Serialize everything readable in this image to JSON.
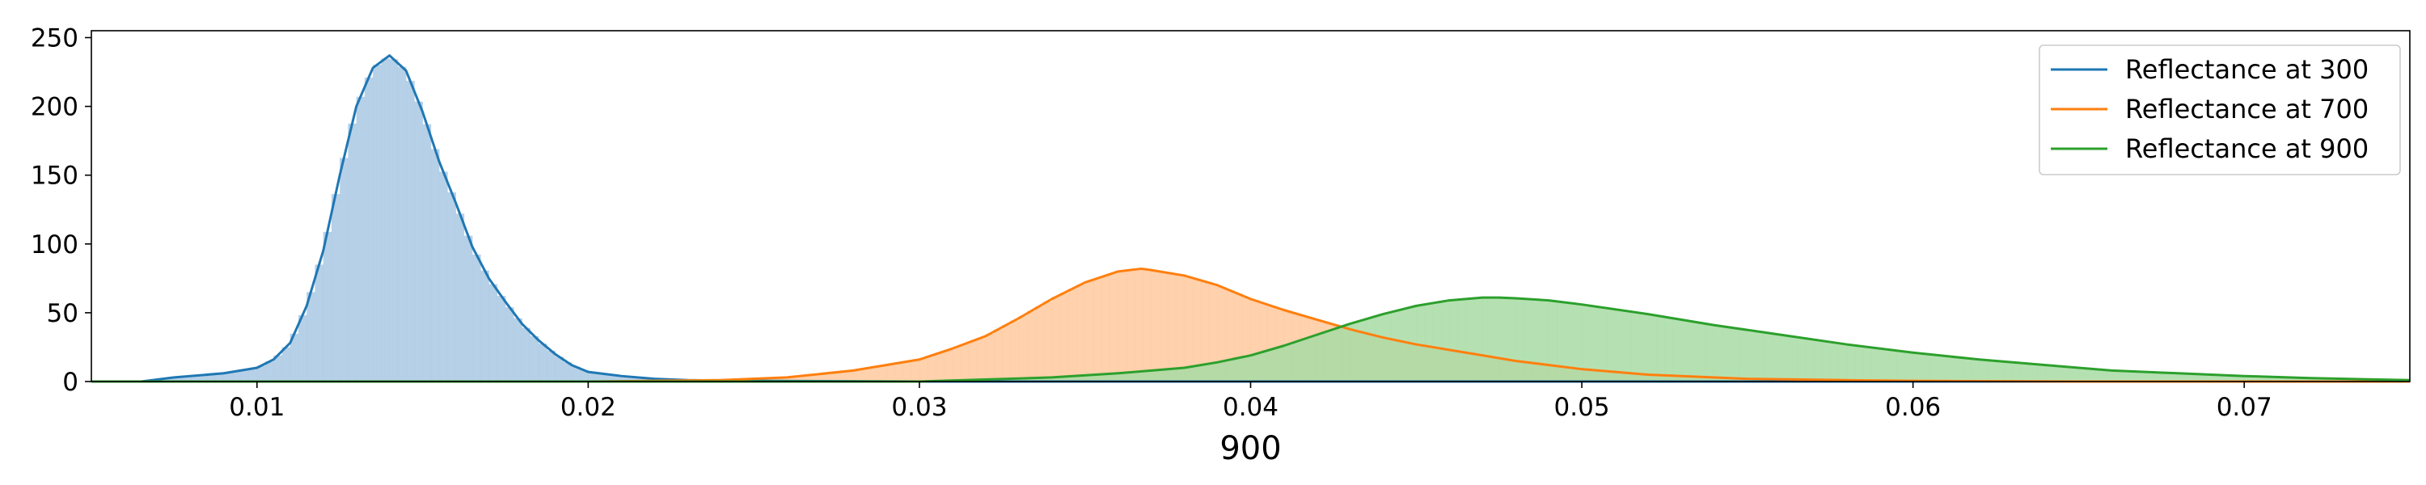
{
  "chart_data": {
    "type": "area",
    "xlabel": "900",
    "ylabel": "",
    "xlim": [
      0.005,
      0.075
    ],
    "ylim": [
      0,
      255
    ],
    "x_ticks": [
      0.01,
      0.02,
      0.03,
      0.04,
      0.05,
      0.06,
      0.07
    ],
    "x_tick_labels": [
      "0.01",
      "0.02",
      "0.03",
      "0.04",
      "0.05",
      "0.06",
      "0.07"
    ],
    "y_ticks": [
      0,
      50,
      100,
      150,
      200,
      250
    ],
    "y_tick_labels": [
      "0",
      "50",
      "100",
      "150",
      "200",
      "250"
    ],
    "grid": false,
    "legend_position": "top-right",
    "series": [
      {
        "name": "Reflectance at 300",
        "line_color": "#1f77b4",
        "fill_color": "#a9c8e3",
        "x": [
          0.0065,
          0.0075,
          0.009,
          0.01,
          0.0105,
          0.011,
          0.0115,
          0.012,
          0.0125,
          0.013,
          0.0135,
          0.014,
          0.0145,
          0.015,
          0.0155,
          0.016,
          0.0165,
          0.017,
          0.0175,
          0.018,
          0.0185,
          0.019,
          0.0195,
          0.02,
          0.021,
          0.022,
          0.023,
          0.025,
          0.03,
          0.04,
          0.05,
          0.06,
          0.075
        ],
        "y": [
          0,
          3,
          6,
          10,
          16,
          28,
          55,
          95,
          150,
          200,
          228,
          237,
          226,
          196,
          160,
          130,
          98,
          75,
          58,
          42,
          30,
          20,
          12,
          7,
          4,
          2,
          1,
          0.5,
          0,
          0,
          0,
          0,
          0
        ]
      },
      {
        "name": "Reflectance at 700",
        "line_color": "#ff7f0e",
        "fill_color": "#ffc99e",
        "x": [
          0.005,
          0.02,
          0.024,
          0.026,
          0.028,
          0.03,
          0.031,
          0.032,
          0.033,
          0.034,
          0.035,
          0.036,
          0.0367,
          0.037,
          0.038,
          0.039,
          0.04,
          0.041,
          0.042,
          0.043,
          0.044,
          0.045,
          0.046,
          0.047,
          0.048,
          0.05,
          0.052,
          0.055,
          0.058,
          0.06,
          0.065,
          0.075
        ],
        "y": [
          0,
          0,
          1,
          3,
          8,
          16,
          24,
          33,
          46,
          60,
          72,
          80,
          82,
          81,
          77,
          70,
          60,
          52,
          45,
          38,
          32,
          27,
          23,
          19,
          15,
          9,
          5,
          2,
          1,
          0.5,
          0,
          0
        ]
      },
      {
        "name": "Reflectance at 900",
        "line_color": "#2ca02c",
        "fill_color": "#a8dca5",
        "x": [
          0.005,
          0.03,
          0.034,
          0.036,
          0.038,
          0.039,
          0.04,
          0.041,
          0.042,
          0.043,
          0.044,
          0.045,
          0.046,
          0.047,
          0.0475,
          0.048,
          0.049,
          0.05,
          0.052,
          0.054,
          0.056,
          0.058,
          0.06,
          0.062,
          0.064,
          0.066,
          0.068,
          0.07,
          0.072,
          0.075
        ],
        "y": [
          0,
          0,
          3,
          6,
          10,
          14,
          19,
          26,
          34,
          42,
          49,
          55,
          59,
          61,
          61,
          60.5,
          59,
          56,
          49,
          41,
          34,
          27,
          21,
          16,
          12,
          8,
          6,
          4,
          2.5,
          1
        ]
      }
    ],
    "histogram_bin_width": 0.00025
  }
}
